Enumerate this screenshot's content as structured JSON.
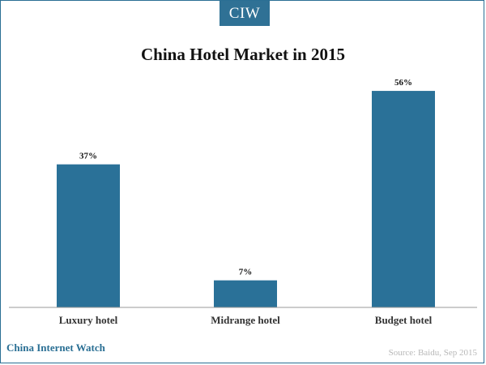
{
  "brand": {
    "tab_label": "CIW",
    "footer_name": "China Internet Watch"
  },
  "source_note": "Source: Baidu, Sep 2015",
  "colors": {
    "bar": "#2a7198",
    "brand": "#2f7195",
    "axis": "#999999"
  },
  "chart_data": {
    "type": "bar",
    "title": "China Hotel Market in 2015",
    "xlabel": "",
    "ylabel": "",
    "categories": [
      "Luxury hotel",
      "Midrange hotel",
      "Budget hotel"
    ],
    "values": [
      37,
      7,
      56
    ],
    "value_labels": [
      "37%",
      "7%",
      "56%"
    ],
    "ylim": [
      0,
      60
    ],
    "grid": false,
    "legend": "none"
  }
}
